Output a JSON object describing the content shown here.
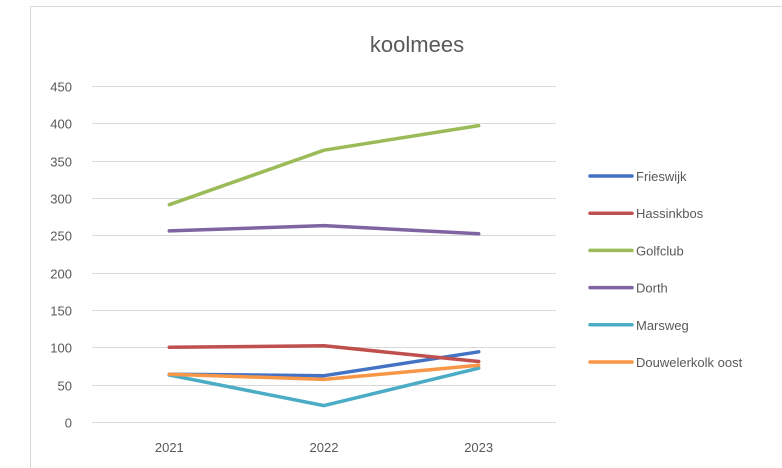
{
  "chart_data": {
    "type": "line",
    "title": "koolmees",
    "xlabel": "",
    "ylabel": "",
    "categories": [
      "2021",
      "2022",
      "2023"
    ],
    "ylim": [
      0,
      450
    ],
    "yticks": [
      0,
      50,
      100,
      150,
      200,
      250,
      300,
      350,
      400,
      450
    ],
    "grid": true,
    "legend_position": "right",
    "series": [
      {
        "name": "Frieswijk",
        "color": "#4472C4",
        "values": [
          64,
          62,
          94
        ]
      },
      {
        "name": "Hassinkbos",
        "color": "#C0504D",
        "values": [
          100,
          102,
          81
        ]
      },
      {
        "name": "Golfclub",
        "color": "#9BBB59",
        "values": [
          291,
          364,
          397
        ]
      },
      {
        "name": "Dorth",
        "color": "#8064A2",
        "values": [
          256,
          263,
          252
        ]
      },
      {
        "name": "Marsweg",
        "color": "#4BACC6",
        "values": [
          63,
          22,
          72
        ]
      },
      {
        "name": "Douwelerkolk oost",
        "color": "#F79646",
        "values": [
          64,
          57,
          76
        ]
      }
    ]
  }
}
